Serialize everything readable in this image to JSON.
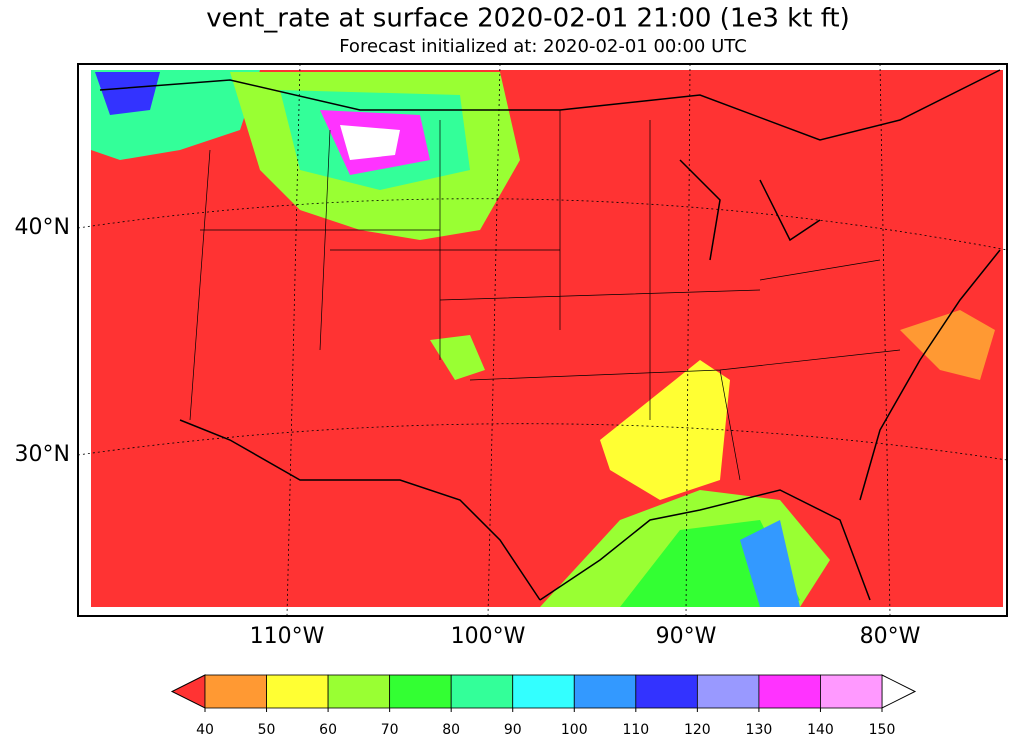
{
  "header": {
    "title": "vent_rate at surface 2020-02-01 21:00 (1e3 kt ft)",
    "subtitle": "Forecast initialized at: 2020-02-01 00:00 UTC"
  },
  "map": {
    "lat_labels": [
      "40°N",
      "30°N"
    ],
    "lon_labels": [
      "110°W",
      "100°W",
      "90°W",
      "80°W"
    ]
  },
  "colorbar": {
    "ticks": [
      40,
      50,
      60,
      70,
      80,
      90,
      100,
      110,
      120,
      130,
      140,
      150
    ],
    "colors": [
      "#ff9933",
      "#ffff33",
      "#99ff33",
      "#33ff33",
      "#33ff99",
      "#33ffff",
      "#3399ff",
      "#3333ff",
      "#9999ff",
      "#ff33ff",
      "#ff99ff"
    ],
    "under_color": "#ff3333",
    "over_color": "#ffffff"
  }
}
